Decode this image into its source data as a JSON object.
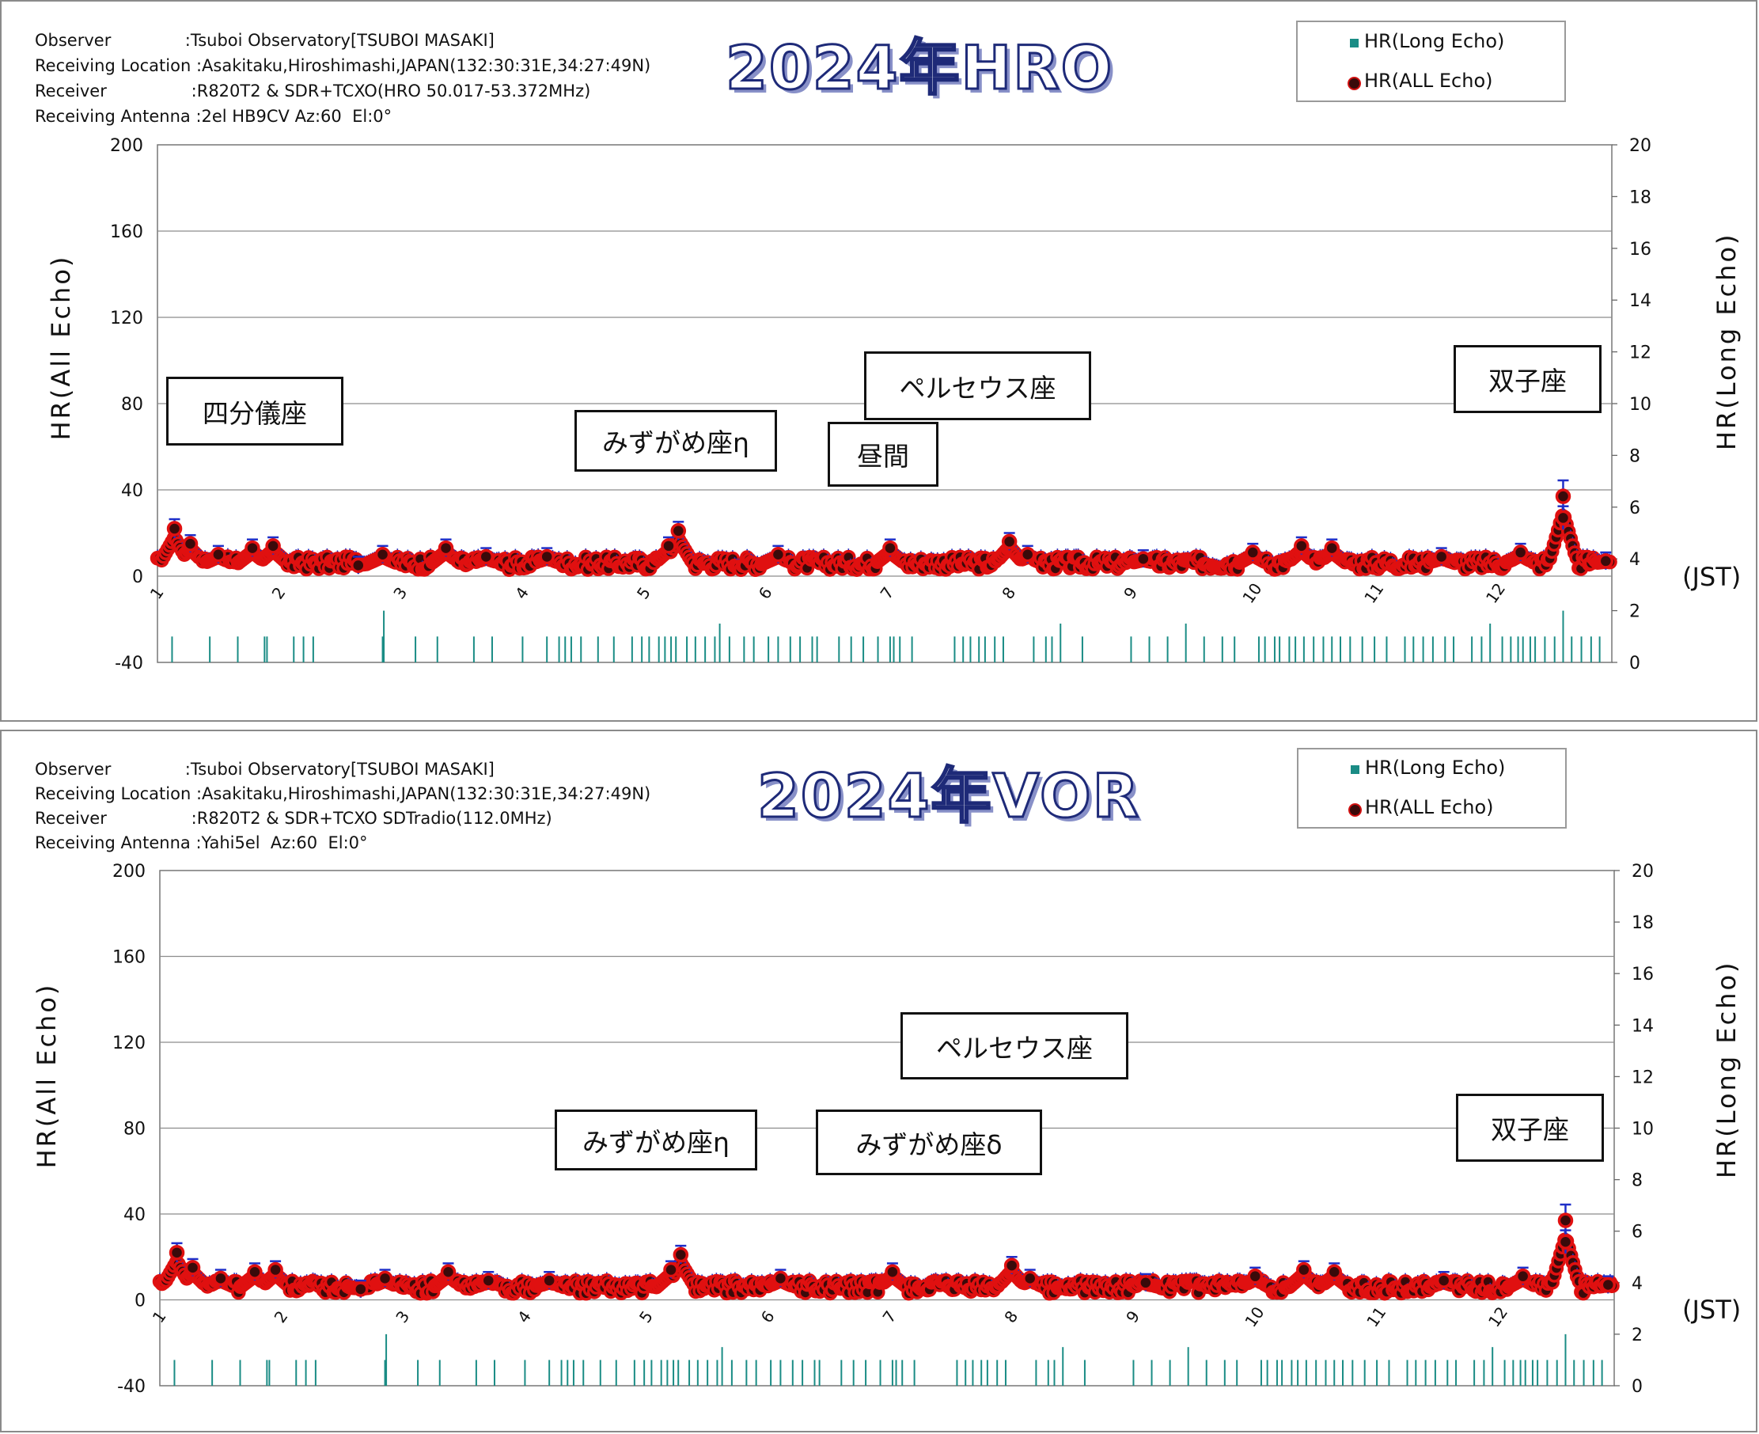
{
  "chart_data": [
    {
      "type": "scatter",
      "title": "2024年HRO",
      "info": {
        "observer": "Observer              :Tsuboi Observatory[TSUBOI MASAKI]",
        "location": "Receiving Location :Asakitaku,Hiroshimashi,JAPAN(132:30:31E,34:27:49N)",
        "receiver": "Receiver                :R820T2 & SDR+TCXO(HRO 50.017-53.372MHz)",
        "antenna": "Receiving Antenna :2el HB9CV Az:60  El:0°"
      },
      "legend": [
        "HR(Long   Echo)",
        "HR(ALL   Echo)"
      ],
      "legend_position": "top-right",
      "ylabel_left": "HR(All Echo)",
      "ylabel_right": "HR(Long Echo)",
      "xlabel": "(JST)",
      "y_left_ticks": [
        "200",
        "160",
        "120",
        "80",
        "40",
        "0",
        "-40"
      ],
      "y_right_ticks": [
        "20",
        "18",
        "16",
        "14",
        "12",
        "10",
        "8",
        "6",
        "4",
        "2",
        "0"
      ],
      "x_ticks": [
        "1",
        "2",
        "3",
        "4",
        "5",
        "6",
        "7",
        "8",
        "9",
        "10",
        "11",
        "12"
      ],
      "ylim_left": [
        -40,
        200
      ],
      "ylim_right": [
        0,
        20
      ],
      "xlim": [
        1,
        12.95
      ],
      "grid": true,
      "annotations": [
        {
          "text": "四分儀座",
          "x": 1.1
        },
        {
          "text": "みずがめ座η",
          "x": 4.4
        },
        {
          "text": "昼間",
          "x": 6.5
        },
        {
          "text": "ペルセウス座",
          "x": 7.3
        },
        {
          "text": "双子座",
          "x": 12.3
        }
      ],
      "series_all_echo": {
        "name": "HR(ALL   Echo)",
        "baseline": 6,
        "peaks": [
          {
            "x": 1.14,
            "y": 22
          },
          {
            "x": 1.27,
            "y": 15
          },
          {
            "x": 1.5,
            "y": 10
          },
          {
            "x": 1.78,
            "y": 13
          },
          {
            "x": 1.95,
            "y": 14
          },
          {
            "x": 2.65,
            "y": 5
          },
          {
            "x": 2.85,
            "y": 10
          },
          {
            "x": 3.37,
            "y": 13
          },
          {
            "x": 3.7,
            "y": 9
          },
          {
            "x": 4.2,
            "y": 9
          },
          {
            "x": 5.2,
            "y": 14
          },
          {
            "x": 5.28,
            "y": 21
          },
          {
            "x": 6.1,
            "y": 10
          },
          {
            "x": 7.02,
            "y": 13
          },
          {
            "x": 8.0,
            "y": 16
          },
          {
            "x": 8.15,
            "y": 10
          },
          {
            "x": 9.1,
            "y": 8
          },
          {
            "x": 10.0,
            "y": 11
          },
          {
            "x": 10.4,
            "y": 14
          },
          {
            "x": 10.65,
            "y": 13
          },
          {
            "x": 11.55,
            "y": 9
          },
          {
            "x": 12.2,
            "y": 11
          },
          {
            "x": 12.55,
            "y": 37
          },
          {
            "x": 12.55,
            "y": 27
          },
          {
            "x": 12.9,
            "y": 7
          }
        ]
      },
      "series_long_echo": {
        "name": "HR(Long   Echo)",
        "x": [
          1.12,
          1.43,
          1.66,
          1.88,
          1.9,
          2.12,
          2.2,
          2.28,
          2.85,
          2.86,
          3.12,
          3.3,
          3.6,
          3.75,
          4.0,
          4.2,
          4.3,
          4.35,
          4.4,
          4.48,
          4.62,
          4.75,
          4.9,
          4.98,
          5.04,
          5.12,
          5.17,
          5.22,
          5.26,
          5.35,
          5.42,
          5.5,
          5.58,
          5.62,
          5.7,
          5.82,
          5.9,
          6.02,
          6.1,
          6.2,
          6.28,
          6.38,
          6.42,
          6.6,
          6.7,
          6.8,
          6.92,
          7.02,
          7.05,
          7.1,
          7.2,
          7.55,
          7.62,
          7.68,
          7.75,
          7.8,
          7.88,
          7.95,
          8.2,
          8.3,
          8.35,
          8.42,
          8.6,
          9.0,
          9.15,
          9.3,
          9.45,
          9.6,
          9.75,
          9.85,
          10.05,
          10.1,
          10.18,
          10.22,
          10.3,
          10.35,
          10.42,
          10.5,
          10.58,
          10.65,
          10.72,
          10.8,
          10.9,
          11.0,
          11.1,
          11.25,
          11.32,
          11.4,
          11.48,
          11.58,
          11.65,
          11.8,
          11.88,
          11.95,
          12.05,
          12.12,
          12.18,
          12.22,
          12.28,
          12.32,
          12.4,
          12.48,
          12.55,
          12.62,
          12.7,
          12.78,
          12.85
        ],
        "y": [
          1,
          1,
          1,
          1,
          1,
          1,
          1,
          1,
          1,
          2,
          1,
          1,
          1,
          1,
          1,
          1,
          1,
          1,
          1,
          1,
          1,
          1,
          1,
          1,
          1,
          1,
          1,
          1,
          1,
          1,
          1,
          1,
          1,
          1.5,
          1,
          1,
          1,
          1,
          1,
          1,
          1,
          1,
          1,
          1,
          1,
          1,
          1,
          1,
          1,
          1,
          1,
          1,
          1,
          1,
          1,
          1,
          1,
          1,
          1,
          1,
          1,
          1.5,
          1,
          1,
          1,
          1,
          1.5,
          1,
          1,
          1,
          1,
          1,
          1,
          1,
          1,
          1,
          1,
          1,
          1,
          1,
          1,
          1,
          1,
          1,
          1,
          1,
          1,
          1,
          1,
          1,
          1,
          1,
          1,
          1.5,
          1,
          1,
          1,
          1,
          1,
          1,
          1,
          1,
          2,
          1,
          1,
          1,
          1
        ]
      }
    },
    {
      "type": "scatter",
      "title": "2024年VOR",
      "info": {
        "observer": "Observer              :Tsuboi Observatory[TSUBOI MASAKI]",
        "location": "Receiving Location :Asakitaku,Hiroshimashi,JAPAN(132:30:31E,34:27:49N)",
        "receiver": "Receiver                :R820T2 & SDR+TCXO SDTradio(112.0MHz)",
        "antenna": "Receiving Antenna :Yahi5el  Az:60  El:0°"
      },
      "legend": [
        "HR(Long   Echo)",
        "HR(ALL   Echo)"
      ],
      "legend_position": "top-right",
      "ylabel_left": "HR(All Echo)",
      "ylabel_right": "HR(Long Echo)",
      "xlabel": "(JST)",
      "y_left_ticks": [
        "200",
        "160",
        "120",
        "80",
        "40",
        "0",
        "-40"
      ],
      "y_right_ticks": [
        "20",
        "18",
        "16",
        "14",
        "12",
        "10",
        "8",
        "6",
        "4",
        "2",
        "0"
      ],
      "x_ticks": [
        "1",
        "2",
        "3",
        "4",
        "5",
        "6",
        "7",
        "8",
        "9",
        "10",
        "11",
        "12"
      ],
      "ylim_left": [
        -40,
        200
      ],
      "ylim_right": [
        0,
        20
      ],
      "xlim": [
        1,
        12.95
      ],
      "grid": true,
      "annotations": [
        {
          "text": "ペルセウス座",
          "x": 7.6
        },
        {
          "text": "みずがめ座η",
          "x": 4.3
        },
        {
          "text": "みずがめ座δ",
          "x": 6.5
        },
        {
          "text": "双子座",
          "x": 12.3
        }
      ],
      "series_all_echo": {
        "name": "HR(ALL   Echo)",
        "baseline": 6,
        "peaks": [
          {
            "x": 1.14,
            "y": 22
          },
          {
            "x": 1.27,
            "y": 15
          },
          {
            "x": 1.5,
            "y": 10
          },
          {
            "x": 1.78,
            "y": 13
          },
          {
            "x": 1.95,
            "y": 14
          },
          {
            "x": 2.65,
            "y": 5
          },
          {
            "x": 2.85,
            "y": 10
          },
          {
            "x": 3.37,
            "y": 13
          },
          {
            "x": 3.7,
            "y": 9
          },
          {
            "x": 4.2,
            "y": 9
          },
          {
            "x": 5.2,
            "y": 14
          },
          {
            "x": 5.28,
            "y": 21
          },
          {
            "x": 6.1,
            "y": 10
          },
          {
            "x": 7.02,
            "y": 13
          },
          {
            "x": 8.0,
            "y": 16
          },
          {
            "x": 8.15,
            "y": 10
          },
          {
            "x": 9.1,
            "y": 8
          },
          {
            "x": 10.0,
            "y": 11
          },
          {
            "x": 10.4,
            "y": 14
          },
          {
            "x": 10.65,
            "y": 13
          },
          {
            "x": 11.55,
            "y": 9
          },
          {
            "x": 12.2,
            "y": 11
          },
          {
            "x": 12.55,
            "y": 37
          },
          {
            "x": 12.55,
            "y": 27
          },
          {
            "x": 12.9,
            "y": 7
          }
        ]
      },
      "series_long_echo": {
        "name": "HR(Long   Echo)",
        "x": [
          1.12,
          1.43,
          1.66,
          1.88,
          1.9,
          2.12,
          2.2,
          2.28,
          2.85,
          2.86,
          3.12,
          3.3,
          3.6,
          3.75,
          4.0,
          4.2,
          4.3,
          4.35,
          4.4,
          4.48,
          4.62,
          4.75,
          4.9,
          4.98,
          5.04,
          5.12,
          5.17,
          5.22,
          5.26,
          5.35,
          5.42,
          5.5,
          5.58,
          5.62,
          5.7,
          5.82,
          5.9,
          6.02,
          6.1,
          6.2,
          6.28,
          6.38,
          6.42,
          6.6,
          6.7,
          6.8,
          6.92,
          7.02,
          7.05,
          7.1,
          7.2,
          7.55,
          7.62,
          7.68,
          7.75,
          7.8,
          7.88,
          7.95,
          8.2,
          8.3,
          8.35,
          8.42,
          8.6,
          9.0,
          9.15,
          9.3,
          9.45,
          9.6,
          9.75,
          9.85,
          10.05,
          10.1,
          10.18,
          10.22,
          10.3,
          10.35,
          10.42,
          10.5,
          10.58,
          10.65,
          10.72,
          10.8,
          10.9,
          11.0,
          11.1,
          11.25,
          11.32,
          11.4,
          11.48,
          11.58,
          11.65,
          11.8,
          11.88,
          11.95,
          12.05,
          12.12,
          12.18,
          12.22,
          12.28,
          12.32,
          12.4,
          12.48,
          12.55,
          12.62,
          12.7,
          12.78,
          12.85
        ],
        "y": [
          1,
          1,
          1,
          1,
          1,
          1,
          1,
          1,
          1,
          2,
          1,
          1,
          1,
          1,
          1,
          1,
          1,
          1,
          1,
          1,
          1,
          1,
          1,
          1,
          1,
          1,
          1,
          1,
          1,
          1,
          1,
          1,
          1,
          1.5,
          1,
          1,
          1,
          1,
          1,
          1,
          1,
          1,
          1,
          1,
          1,
          1,
          1,
          1,
          1,
          1,
          1,
          1,
          1,
          1,
          1,
          1,
          1,
          1,
          1,
          1,
          1,
          1.5,
          1,
          1,
          1,
          1,
          1.5,
          1,
          1,
          1,
          1,
          1,
          1,
          1,
          1,
          1,
          1,
          1,
          1,
          1,
          1,
          1,
          1,
          1,
          1,
          1,
          1,
          1,
          1,
          1,
          1,
          1,
          1,
          1.5,
          1,
          1,
          1,
          1,
          1,
          1,
          1,
          1,
          2,
          1,
          1,
          1,
          1
        ]
      }
    }
  ],
  "colors": {
    "all_echo_fill": "#3a0a0a",
    "all_echo_stroke": "#e01010",
    "error_bar": "#1f2fc8",
    "long_echo": "#1a8c85",
    "grid": "#8c8c8c",
    "title_stroke": "#1e2a78"
  }
}
